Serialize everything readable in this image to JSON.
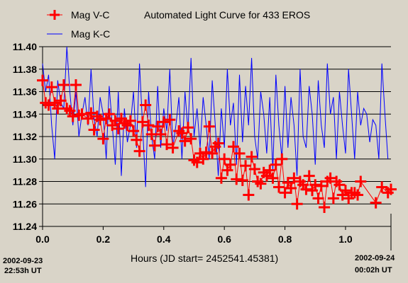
{
  "chart_data": {
    "type": "line",
    "title": "Automated Light Curve for 433 EROS",
    "xlabel": "Hours (JD start= 2452541.45381)",
    "ylabel": "",
    "xlim": [
      0.0,
      1.15
    ],
    "ylim": [
      11.24,
      11.4
    ],
    "x_ticks": [
      "0.0",
      "0.2",
      "0.4",
      "0.6",
      "0.8",
      "1.0"
    ],
    "y_ticks": [
      "11.24",
      "11.26",
      "11.28",
      "11.30",
      "11.32",
      "11.34",
      "11.36",
      "11.38",
      "11.40"
    ],
    "grid": "horizontal",
    "legend_position": "top-left",
    "date_labels": {
      "start": [
        "2002-09-23",
        "22:53h UT"
      ],
      "end": [
        "2002-09-24",
        "00:02h UT"
      ],
      "end_marker_x": 1.15
    },
    "series": [
      {
        "name": "Mag V-C",
        "color": "#ff0000",
        "marker": "plus",
        "x": [
          0.0,
          0.01,
          0.02,
          0.03,
          0.04,
          0.05,
          0.06,
          0.07,
          0.08,
          0.09,
          0.1,
          0.11,
          0.12,
          0.13,
          0.15,
          0.16,
          0.17,
          0.18,
          0.19,
          0.2,
          0.21,
          0.22,
          0.23,
          0.24,
          0.25,
          0.26,
          0.27,
          0.28,
          0.29,
          0.3,
          0.31,
          0.32,
          0.33,
          0.34,
          0.35,
          0.36,
          0.37,
          0.38,
          0.39,
          0.4,
          0.41,
          0.42,
          0.43,
          0.45,
          0.46,
          0.47,
          0.48,
          0.49,
          0.5,
          0.51,
          0.52,
          0.53,
          0.54,
          0.55,
          0.56,
          0.57,
          0.58,
          0.59,
          0.6,
          0.61,
          0.62,
          0.63,
          0.64,
          0.65,
          0.66,
          0.67,
          0.68,
          0.69,
          0.7,
          0.71,
          0.72,
          0.73,
          0.74,
          0.75,
          0.76,
          0.77,
          0.78,
          0.79,
          0.8,
          0.81,
          0.82,
          0.83,
          0.84,
          0.85,
          0.86,
          0.87,
          0.88,
          0.89,
          0.9,
          0.91,
          0.92,
          0.93,
          0.94,
          0.95,
          0.96,
          0.97,
          0.98,
          0.99,
          1.0,
          1.01,
          1.02,
          1.03,
          1.04,
          1.05,
          1.1,
          1.12,
          1.14,
          1.15
        ],
        "y": [
          11.37,
          11.35,
          11.348,
          11.364,
          11.35,
          11.345,
          11.352,
          11.366,
          11.345,
          11.343,
          11.338,
          11.366,
          11.339,
          11.34,
          11.336,
          11.341,
          11.326,
          11.338,
          11.335,
          11.318,
          11.336,
          11.34,
          11.33,
          11.334,
          11.327,
          11.336,
          11.332,
          11.33,
          11.334,
          11.325,
          11.317,
          11.307,
          11.333,
          11.348,
          11.33,
          11.322,
          11.312,
          11.329,
          11.322,
          11.333,
          11.313,
          11.335,
          11.31,
          11.325,
          11.323,
          11.316,
          11.328,
          11.318,
          11.299,
          11.297,
          11.305,
          11.3,
          11.306,
          11.329,
          11.305,
          11.311,
          11.314,
          11.283,
          11.3,
          11.29,
          11.295,
          11.311,
          11.282,
          11.305,
          11.281,
          11.294,
          11.268,
          11.302,
          11.291,
          11.28,
          11.278,
          11.288,
          11.285,
          11.29,
          11.283,
          11.295,
          11.275,
          11.3,
          11.27,
          11.279,
          11.274,
          11.283,
          11.26,
          11.28,
          11.277,
          11.273,
          11.285,
          11.272,
          11.277,
          11.265,
          11.276,
          11.257,
          11.28,
          11.283,
          11.265,
          11.28,
          11.277,
          11.268,
          11.272,
          11.265,
          11.27,
          11.27,
          11.268,
          11.28,
          11.261,
          11.275,
          11.27,
          11.273
        ]
      },
      {
        "name": "Mag K-C",
        "color": "#0000ff",
        "marker": "none",
        "x": [
          0.0,
          0.01,
          0.02,
          0.03,
          0.04,
          0.05,
          0.06,
          0.07,
          0.08,
          0.09,
          0.1,
          0.11,
          0.12,
          0.13,
          0.14,
          0.15,
          0.16,
          0.17,
          0.18,
          0.19,
          0.2,
          0.21,
          0.22,
          0.23,
          0.24,
          0.25,
          0.26,
          0.27,
          0.28,
          0.29,
          0.3,
          0.31,
          0.32,
          0.33,
          0.34,
          0.35,
          0.36,
          0.37,
          0.38,
          0.39,
          0.4,
          0.41,
          0.42,
          0.43,
          0.44,
          0.45,
          0.46,
          0.47,
          0.48,
          0.49,
          0.5,
          0.51,
          0.52,
          0.53,
          0.54,
          0.55,
          0.56,
          0.57,
          0.58,
          0.59,
          0.6,
          0.61,
          0.62,
          0.63,
          0.64,
          0.65,
          0.66,
          0.67,
          0.68,
          0.69,
          0.7,
          0.71,
          0.72,
          0.73,
          0.74,
          0.75,
          0.76,
          0.77,
          0.78,
          0.79,
          0.8,
          0.81,
          0.82,
          0.83,
          0.84,
          0.85,
          0.86,
          0.87,
          0.88,
          0.89,
          0.9,
          0.91,
          0.92,
          0.93,
          0.94,
          0.95,
          0.96,
          0.97,
          0.98,
          0.99,
          1.0,
          1.01,
          1.02,
          1.03,
          1.04,
          1.05,
          1.06,
          1.07,
          1.08,
          1.09,
          1.1,
          1.11,
          1.12,
          1.13,
          1.14
        ],
        "y": [
          11.385,
          11.36,
          11.375,
          11.33,
          11.3,
          11.37,
          11.35,
          11.345,
          11.4,
          11.36,
          11.33,
          11.36,
          11.32,
          11.34,
          11.355,
          11.33,
          11.38,
          11.335,
          11.32,
          11.355,
          11.34,
          11.3,
          11.365,
          11.33,
          11.295,
          11.36,
          11.285,
          11.345,
          11.315,
          11.33,
          11.36,
          11.31,
          11.385,
          11.33,
          11.275,
          11.36,
          11.32,
          11.3,
          11.365,
          11.31,
          11.345,
          11.325,
          11.38,
          11.31,
          11.33,
          11.355,
          11.3,
          11.36,
          11.325,
          11.39,
          11.32,
          11.345,
          11.31,
          11.355,
          11.33,
          11.3,
          11.37,
          11.33,
          11.285,
          11.345,
          11.31,
          11.38,
          11.33,
          11.35,
          11.295,
          11.375,
          11.315,
          11.365,
          11.33,
          11.39,
          11.32,
          11.3,
          11.36,
          11.34,
          11.305,
          11.355,
          11.29,
          11.375,
          11.33,
          11.3,
          11.365,
          11.31,
          11.355,
          11.33,
          11.285,
          11.38,
          11.32,
          11.31,
          11.365,
          11.34,
          11.295,
          11.37,
          11.33,
          11.31,
          11.385,
          11.34,
          11.355,
          11.3,
          11.36,
          11.33,
          11.305,
          11.38,
          11.34,
          11.3,
          11.36,
          11.33,
          11.345,
          11.34,
          11.315,
          11.335,
          11.33,
          11.3,
          11.385,
          11.34,
          11.3
        ]
      }
    ]
  }
}
